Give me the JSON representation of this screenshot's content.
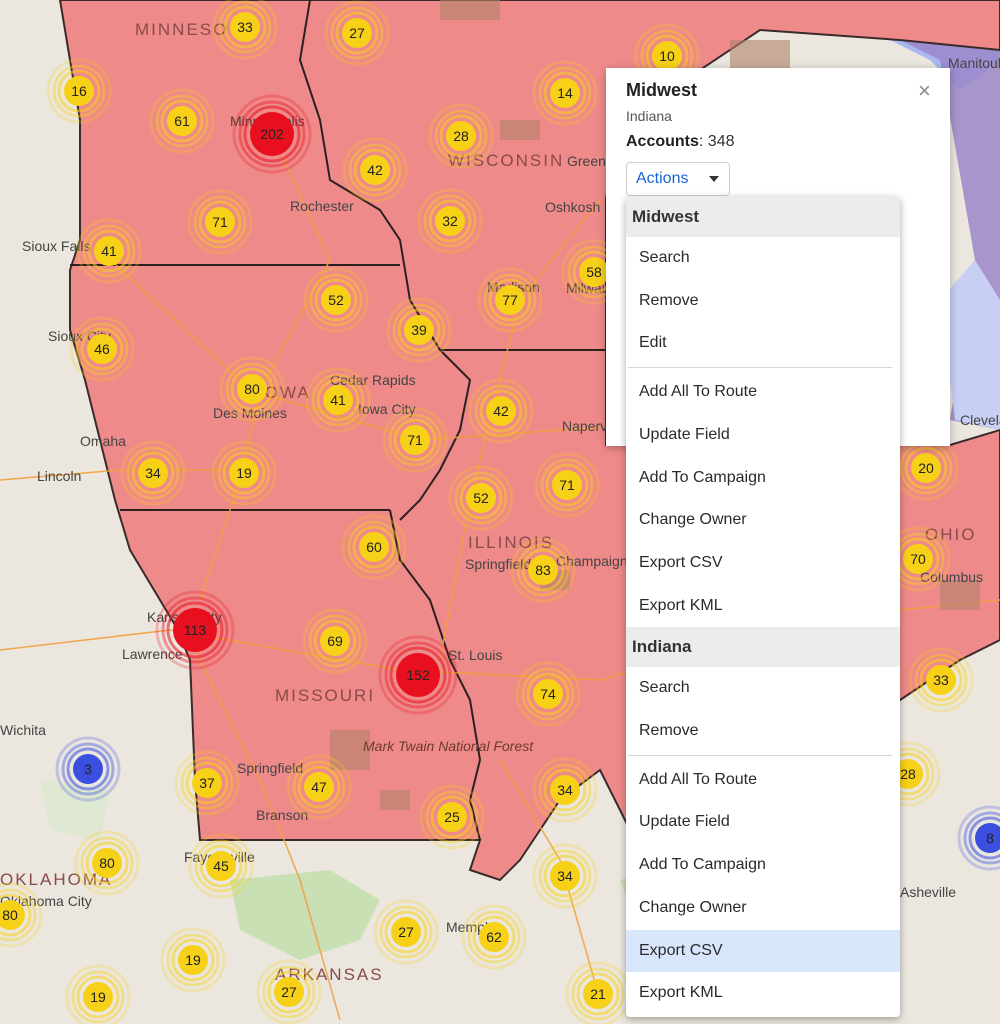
{
  "map": {
    "state_labels": [
      "MINNESO",
      "WISCONSIN",
      "IOWA",
      "ILLINOIS",
      "MISSOURI",
      "OHIO",
      "ARKANSAS",
      "OKLAHOMA"
    ],
    "city_labels": [
      "Minneapolis",
      "Rochester",
      "Sioux Falls",
      "Sioux City",
      "Omaha",
      "Lincoln",
      "Des Moines",
      "Cedar Rapids",
      "Iowa City",
      "Madison",
      "Oshkosh",
      "Naperville",
      "Springfield",
      "Champaign",
      "St. Louis",
      "Kansas City",
      "Lawrence",
      "Wichita",
      "Springfield",
      "Branson",
      "Fayetteville",
      "Memphis",
      "Asheville",
      "Cleveland",
      "Columbus",
      "Manitoulin Island",
      "Oklahoma City",
      "Green Bay",
      "Milwaukee"
    ],
    "park_label": "Mark Twain National Forest",
    "region_fill_color": "#ef8a8a",
    "cluster_colors": {
      "small": "#f7d117",
      "large": "#e8101f",
      "other": "#3a4fe0"
    },
    "clusters": [
      {
        "n": "33",
        "tier": "small"
      },
      {
        "n": "27",
        "tier": "small"
      },
      {
        "n": "10",
        "tier": "small"
      },
      {
        "n": "16",
        "tier": "small"
      },
      {
        "n": "61",
        "tier": "small"
      },
      {
        "n": "202",
        "tier": "large"
      },
      {
        "n": "14",
        "tier": "small"
      },
      {
        "n": "28",
        "tier": "small"
      },
      {
        "n": "42",
        "tier": "small"
      },
      {
        "n": "71",
        "tier": "small"
      },
      {
        "n": "32",
        "tier": "small"
      },
      {
        "n": "41",
        "tier": "small"
      },
      {
        "n": "52",
        "tier": "small"
      },
      {
        "n": "77",
        "tier": "small"
      },
      {
        "n": "58",
        "tier": "small"
      },
      {
        "n": "39",
        "tier": "small"
      },
      {
        "n": "46",
        "tier": "small"
      },
      {
        "n": "80",
        "tier": "small"
      },
      {
        "n": "41",
        "tier": "small"
      },
      {
        "n": "42",
        "tier": "small"
      },
      {
        "n": "71",
        "tier": "small"
      },
      {
        "n": "34",
        "tier": "small"
      },
      {
        "n": "19",
        "tier": "small"
      },
      {
        "n": "52",
        "tier": "small"
      },
      {
        "n": "71",
        "tier": "small"
      },
      {
        "n": "20",
        "tier": "small"
      },
      {
        "n": "60",
        "tier": "small"
      },
      {
        "n": "83",
        "tier": "small"
      },
      {
        "n": "70",
        "tier": "small"
      },
      {
        "n": "113",
        "tier": "large"
      },
      {
        "n": "69",
        "tier": "small"
      },
      {
        "n": "152",
        "tier": "large"
      },
      {
        "n": "74",
        "tier": "small"
      },
      {
        "n": "33",
        "tier": "small"
      },
      {
        "n": "3",
        "tier": "other"
      },
      {
        "n": "37",
        "tier": "small"
      },
      {
        "n": "47",
        "tier": "small"
      },
      {
        "n": "34",
        "tier": "small"
      },
      {
        "n": "28",
        "tier": "small"
      },
      {
        "n": "25",
        "tier": "small"
      },
      {
        "n": "80",
        "tier": "small"
      },
      {
        "n": "45",
        "tier": "small"
      },
      {
        "n": "34",
        "tier": "small"
      },
      {
        "n": "8",
        "tier": "other"
      },
      {
        "n": "80",
        "tier": "small"
      },
      {
        "n": "27",
        "tier": "small"
      },
      {
        "n": "62",
        "tier": "small"
      },
      {
        "n": "19",
        "tier": "small"
      },
      {
        "n": "19",
        "tier": "small"
      },
      {
        "n": "27",
        "tier": "small"
      },
      {
        "n": "21",
        "tier": "small"
      }
    ]
  },
  "popup": {
    "title": "Midwest",
    "subtitle": "Indiana",
    "accounts_label": "Accounts",
    "accounts_value": "348",
    "close_glyph": "×",
    "actions_label": "Actions"
  },
  "menu": {
    "section_1": "Midwest",
    "s1_items_a": [
      "Search",
      "Remove",
      "Edit"
    ],
    "s1_items_b": [
      "Add All To Route",
      "Update Field",
      "Add To Campaign",
      "Change Owner",
      "Export CSV",
      "Export KML"
    ],
    "section_2": "Indiana",
    "s2_items_a": [
      "Search",
      "Remove"
    ],
    "s2_items_b": [
      "Add All To Route",
      "Update Field",
      "Add To Campaign",
      "Change Owner",
      "Export CSV",
      "Export KML"
    ],
    "hovered_item": "Export CSV"
  }
}
